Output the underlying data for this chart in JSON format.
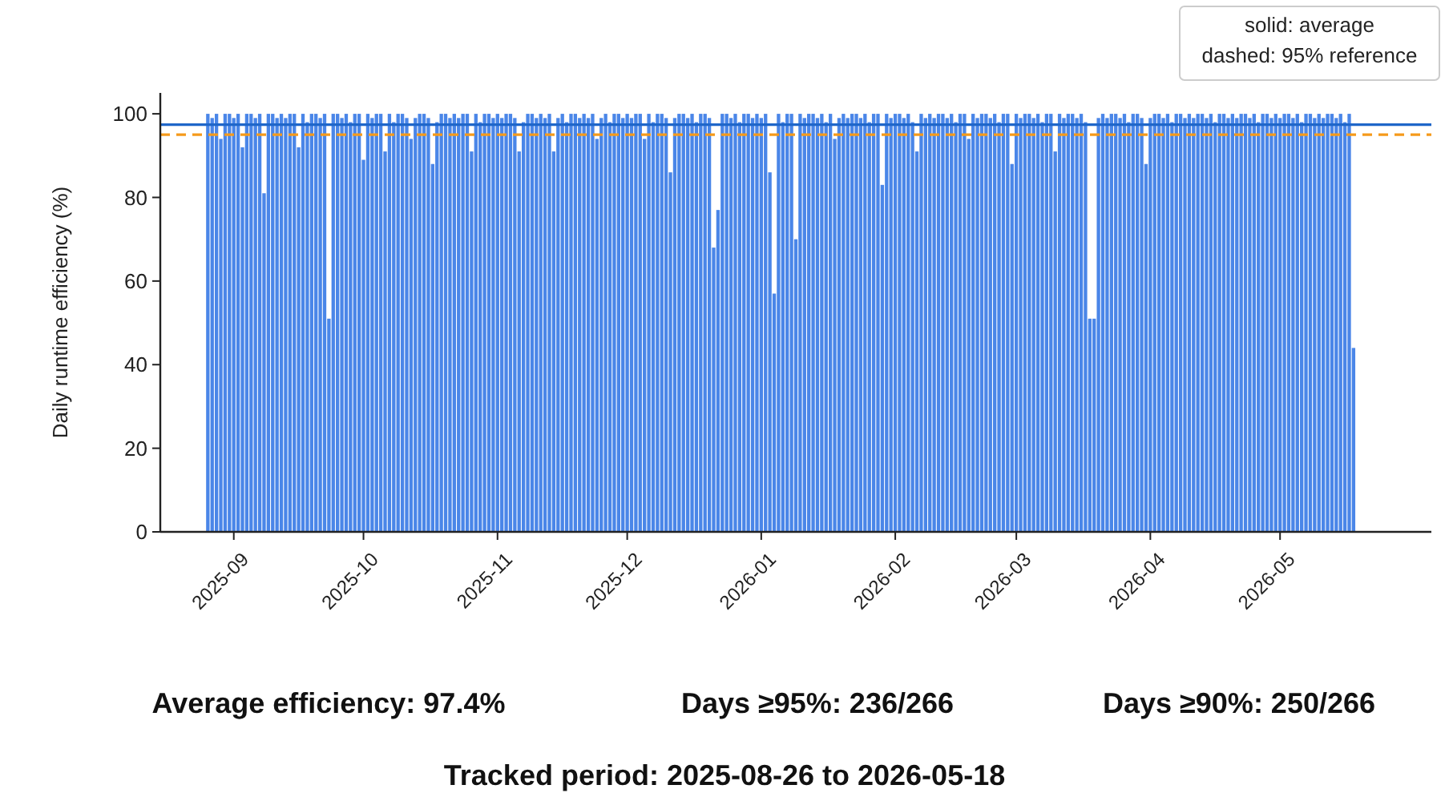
{
  "chart_data": {
    "type": "bar",
    "ylabel": "Daily runtime efficiency (%)",
    "x": [
      "2025-08-26",
      "2025-08-27",
      "2025-08-28",
      "2025-08-29",
      "2025-08-30",
      "2025-08-31",
      "2025-09-01",
      "2025-09-02",
      "2025-09-03",
      "2025-09-04",
      "2025-09-05",
      "2025-09-06",
      "2025-09-07",
      "2025-09-08",
      "2025-09-09",
      "2025-09-10",
      "2025-09-11",
      "2025-09-12",
      "2025-09-13",
      "2025-09-14",
      "2025-09-15",
      "2025-09-16",
      "2025-09-17",
      "2025-09-18",
      "2025-09-19",
      "2025-09-20",
      "2025-09-21",
      "2025-09-22",
      "2025-09-23",
      "2025-09-24",
      "2025-09-25",
      "2025-09-26",
      "2025-09-27",
      "2025-09-28",
      "2025-09-29",
      "2025-09-30",
      "2025-10-01",
      "2025-10-02",
      "2025-10-03",
      "2025-10-04",
      "2025-10-05",
      "2025-10-06",
      "2025-10-07",
      "2025-10-08",
      "2025-10-09",
      "2025-10-10",
      "2025-10-11",
      "2025-10-12",
      "2025-10-13",
      "2025-10-14",
      "2025-10-15",
      "2025-10-16",
      "2025-10-17",
      "2025-10-18",
      "2025-10-19",
      "2025-10-20",
      "2025-10-21",
      "2025-10-22",
      "2025-10-23",
      "2025-10-24",
      "2025-10-25",
      "2025-10-26",
      "2025-10-27",
      "2025-10-28",
      "2025-10-29",
      "2025-10-30",
      "2025-10-31",
      "2025-11-01",
      "2025-11-02",
      "2025-11-03",
      "2025-11-04",
      "2025-11-05",
      "2025-11-06",
      "2025-11-07",
      "2025-11-08",
      "2025-11-09",
      "2025-11-10",
      "2025-11-11",
      "2025-11-12",
      "2025-11-13",
      "2025-11-14",
      "2025-11-15",
      "2025-11-16",
      "2025-11-17",
      "2025-11-18",
      "2025-11-19",
      "2025-11-20",
      "2025-11-21",
      "2025-11-22",
      "2025-11-23",
      "2025-11-24",
      "2025-11-25",
      "2025-11-26",
      "2025-11-27",
      "2025-11-28",
      "2025-11-29",
      "2025-11-30",
      "2025-12-01",
      "2025-12-02",
      "2025-12-03",
      "2025-12-04",
      "2025-12-05",
      "2025-12-06",
      "2025-12-07",
      "2025-12-08",
      "2025-12-09",
      "2025-12-10",
      "2025-12-11",
      "2025-12-12",
      "2025-12-13",
      "2025-12-14",
      "2025-12-15",
      "2025-12-16",
      "2025-12-17",
      "2025-12-18",
      "2025-12-19",
      "2025-12-20",
      "2025-12-21",
      "2025-12-22",
      "2025-12-23",
      "2025-12-24",
      "2025-12-25",
      "2025-12-26",
      "2025-12-27",
      "2025-12-28",
      "2025-12-29",
      "2025-12-30",
      "2025-12-31",
      "2026-01-01",
      "2026-01-02",
      "2026-01-03",
      "2026-01-04",
      "2026-01-05",
      "2026-01-06",
      "2026-01-07",
      "2026-01-08",
      "2026-01-09",
      "2026-01-10",
      "2026-01-11",
      "2026-01-12",
      "2026-01-13",
      "2026-01-14",
      "2026-01-15",
      "2026-01-16",
      "2026-01-17",
      "2026-01-18",
      "2026-01-19",
      "2026-01-20",
      "2026-01-21",
      "2026-01-22",
      "2026-01-23",
      "2026-01-24",
      "2026-01-25",
      "2026-01-26",
      "2026-01-27",
      "2026-01-28",
      "2026-01-29",
      "2026-01-30",
      "2026-01-31",
      "2026-02-01",
      "2026-02-02",
      "2026-02-03",
      "2026-02-04",
      "2026-02-05",
      "2026-02-06",
      "2026-02-07",
      "2026-02-08",
      "2026-02-09",
      "2026-02-10",
      "2026-02-11",
      "2026-02-12",
      "2026-02-13",
      "2026-02-14",
      "2026-02-15",
      "2026-02-16",
      "2026-02-17",
      "2026-02-18",
      "2026-02-19",
      "2026-02-20",
      "2026-02-21",
      "2026-02-22",
      "2026-02-23",
      "2026-02-24",
      "2026-02-25",
      "2026-02-26",
      "2026-02-27",
      "2026-02-28",
      "2026-03-01",
      "2026-03-02",
      "2026-03-03",
      "2026-03-04",
      "2026-03-05",
      "2026-03-06",
      "2026-03-07",
      "2026-03-08",
      "2026-03-09",
      "2026-03-10",
      "2026-03-11",
      "2026-03-12",
      "2026-03-13",
      "2026-03-14",
      "2026-03-15",
      "2026-03-16",
      "2026-03-17",
      "2026-03-18",
      "2026-03-19",
      "2026-03-20",
      "2026-03-21",
      "2026-03-22",
      "2026-03-23",
      "2026-03-24",
      "2026-03-25",
      "2026-03-26",
      "2026-03-27",
      "2026-03-28",
      "2026-03-29",
      "2026-03-30",
      "2026-03-31",
      "2026-04-01",
      "2026-04-02",
      "2026-04-03",
      "2026-04-04",
      "2026-04-05",
      "2026-04-06",
      "2026-04-07",
      "2026-04-08",
      "2026-04-09",
      "2026-04-10",
      "2026-04-11",
      "2026-04-12",
      "2026-04-13",
      "2026-04-14",
      "2026-04-15",
      "2026-04-16",
      "2026-04-17",
      "2026-04-18",
      "2026-04-19",
      "2026-04-20",
      "2026-04-21",
      "2026-04-22",
      "2026-04-23",
      "2026-04-24",
      "2026-04-25",
      "2026-04-26",
      "2026-04-27",
      "2026-04-28",
      "2026-04-29",
      "2026-04-30",
      "2026-05-01",
      "2026-05-02",
      "2026-05-03",
      "2026-05-04",
      "2026-05-05",
      "2026-05-06",
      "2026-05-07",
      "2026-05-08",
      "2026-05-09",
      "2026-05-10",
      "2026-05-11",
      "2026-05-12",
      "2026-05-13",
      "2026-05-14",
      "2026-05-15",
      "2026-05-16",
      "2026-05-17",
      "2026-05-18"
    ],
    "values": [
      100,
      99,
      100,
      94,
      100,
      100,
      99,
      100,
      92,
      100,
      100,
      99,
      100,
      81,
      100,
      100,
      99,
      100,
      99,
      100,
      100,
      92,
      100,
      98,
      100,
      100,
      99,
      100,
      51,
      100,
      100,
      99,
      100,
      98,
      100,
      100,
      89,
      100,
      99,
      100,
      100,
      91,
      100,
      98,
      100,
      100,
      99,
      94,
      99,
      100,
      100,
      99,
      88,
      98,
      100,
      100,
      99,
      100,
      99,
      100,
      100,
      91,
      100,
      98,
      100,
      100,
      99,
      100,
      99,
      100,
      100,
      99,
      91,
      98,
      100,
      100,
      99,
      100,
      99,
      100,
      91,
      99,
      100,
      98,
      100,
      100,
      99,
      100,
      99,
      100,
      94,
      99,
      100,
      98,
      100,
      100,
      99,
      100,
      99,
      100,
      100,
      94,
      100,
      98,
      100,
      100,
      99,
      86,
      99,
      100,
      100,
      99,
      100,
      98,
      100,
      100,
      99,
      68,
      77,
      100,
      100,
      99,
      100,
      98,
      100,
      100,
      99,
      100,
      99,
      100,
      86,
      57,
      100,
      98,
      100,
      100,
      70,
      100,
      99,
      100,
      100,
      99,
      100,
      98,
      100,
      94,
      99,
      100,
      99,
      100,
      100,
      99,
      100,
      98,
      100,
      100,
      83,
      100,
      99,
      100,
      100,
      99,
      100,
      98,
      91,
      100,
      99,
      100,
      99,
      100,
      100,
      99,
      100,
      98,
      100,
      100,
      94,
      100,
      99,
      100,
      100,
      99,
      100,
      98,
      100,
      100,
      88,
      100,
      99,
      100,
      100,
      99,
      100,
      98,
      100,
      100,
      91,
      100,
      99,
      100,
      100,
      99,
      100,
      98,
      51,
      51,
      99,
      100,
      99,
      100,
      100,
      99,
      100,
      98,
      100,
      100,
      99,
      88,
      99,
      100,
      100,
      99,
      100,
      98,
      100,
      100,
      99,
      100,
      99,
      100,
      100,
      99,
      100,
      98,
      100,
      100,
      99,
      100,
      99,
      100,
      100,
      99,
      100,
      98,
      100,
      100,
      99,
      100,
      99,
      100,
      100,
      99,
      100,
      98,
      100,
      100,
      99,
      100,
      99,
      100,
      100,
      99,
      100,
      98,
      100,
      44
    ],
    "color": "#4a86e8",
    "xlim": [
      "2025-08-15",
      "2026-06-05"
    ],
    "xticks": [
      "2025-09",
      "2025-10",
      "2025-11",
      "2025-12",
      "2026-01",
      "2026-02",
      "2026-03",
      "2026-04",
      "2026-05"
    ],
    "ylim": [
      0,
      105
    ],
    "yticks": [
      0,
      20,
      40,
      60,
      80,
      100
    ],
    "ref_lines": [
      {
        "axis": "y",
        "value": 97.4,
        "color": "#1f66c9",
        "line_style": "solid"
      },
      {
        "axis": "y",
        "value": 95,
        "color": "#f59a1b",
        "line_style": "dashed"
      }
    ],
    "annotations": [
      "solid: average",
      "dashed: 95% reference",
      "Average efficiency: 97.4%",
      "Days ≥95%: 236/266",
      "Days ≥90%: 250/266",
      "Tracked period: 2025-08-26 to 2026-05-18"
    ],
    "grid": false
  }
}
